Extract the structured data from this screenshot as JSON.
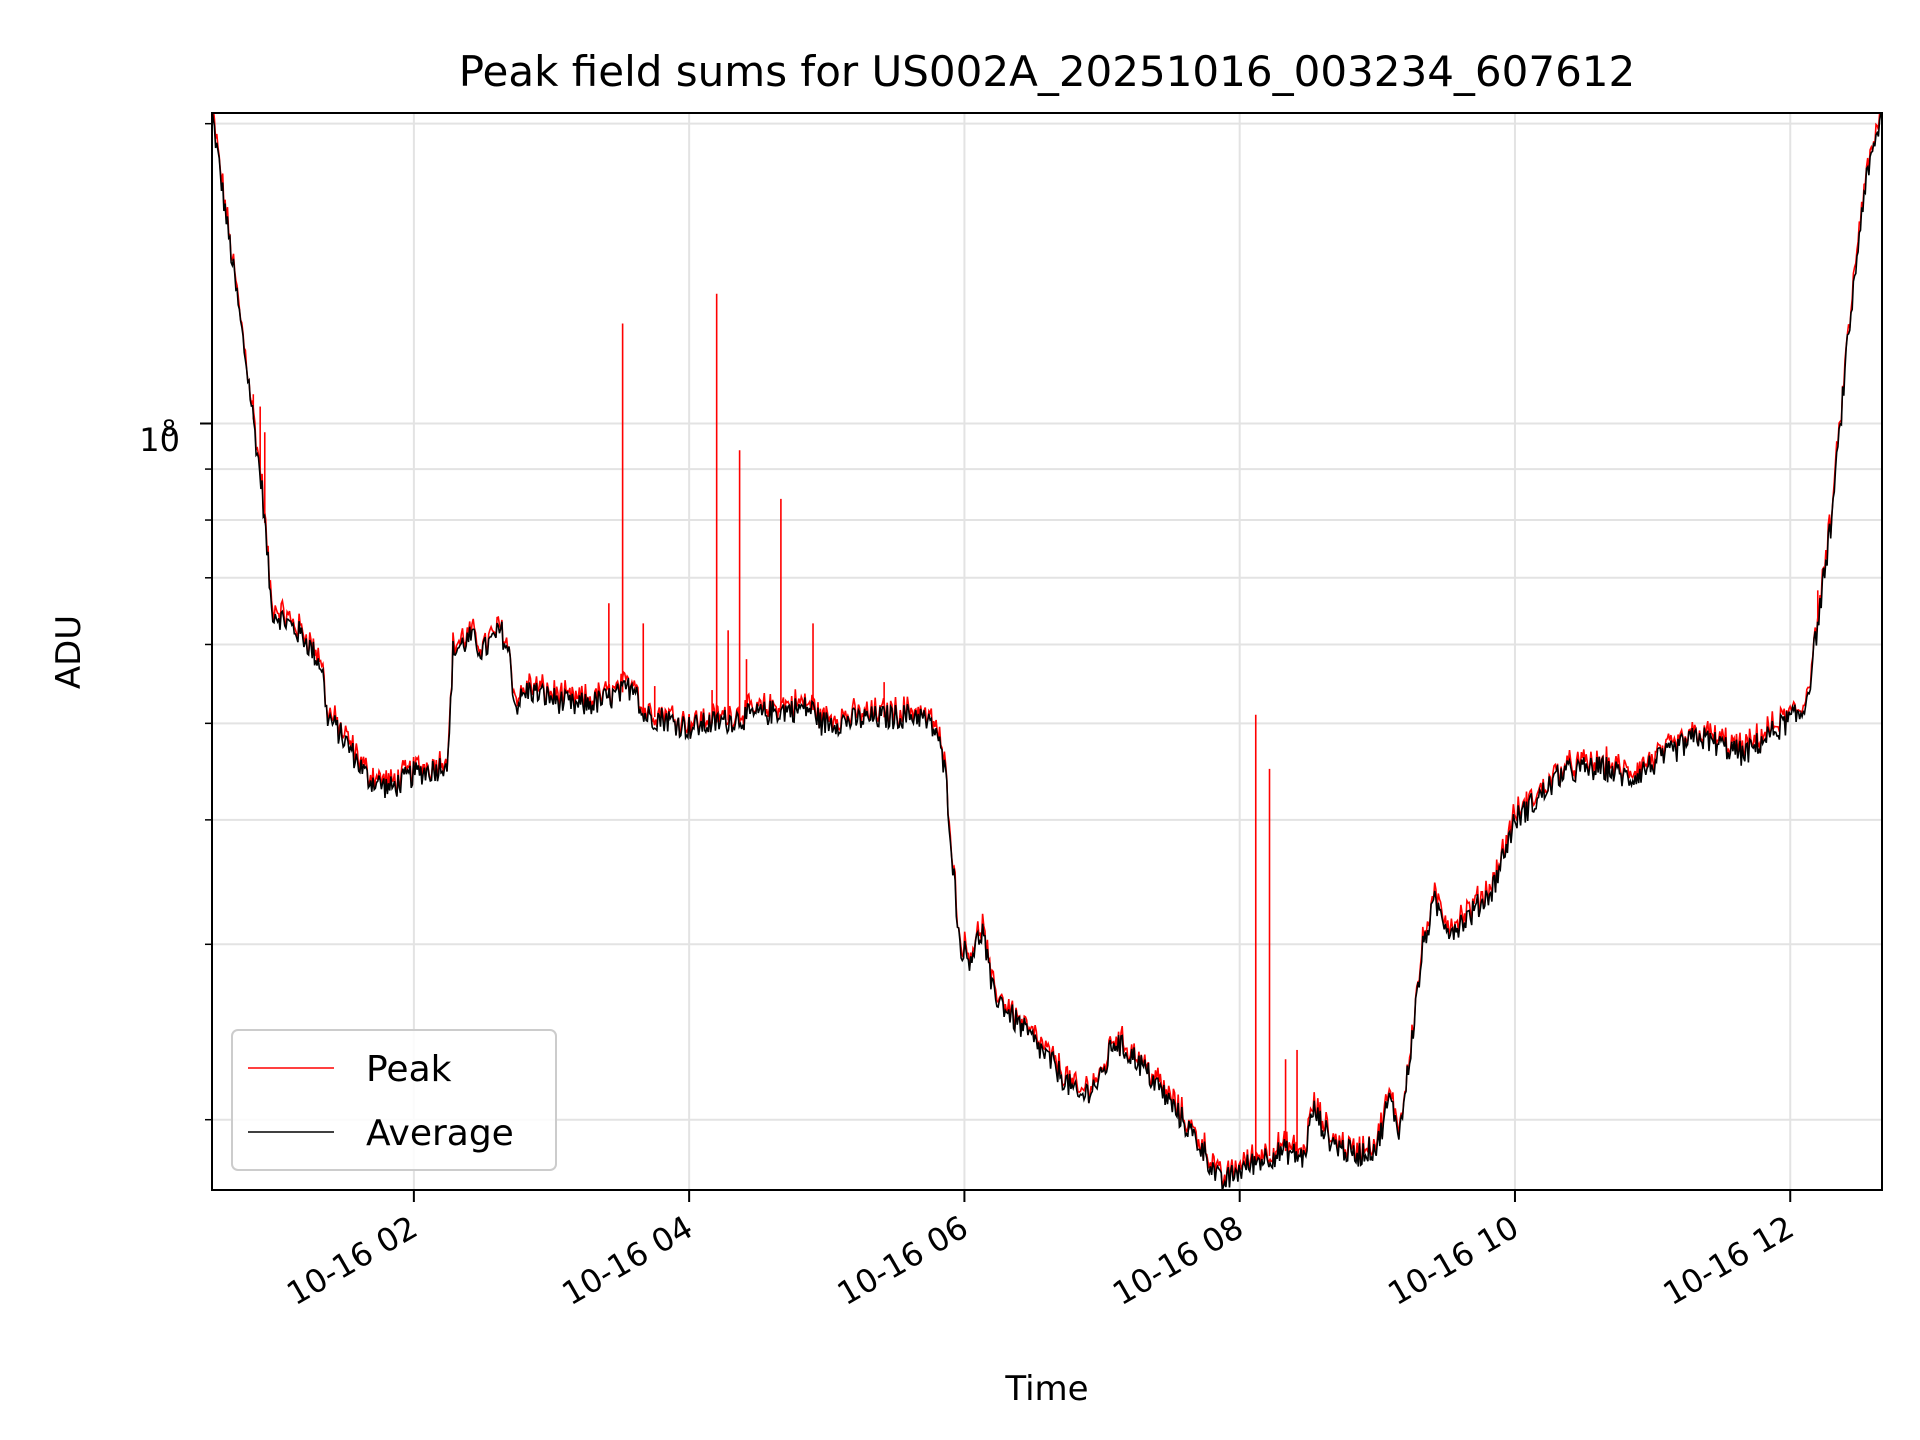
{
  "chart_data": {
    "type": "line",
    "title": "Peak field sums for US002A_20251016_003234_607612",
    "xlabel": "Time",
    "ylabel": "ADU",
    "y_scale": "log",
    "y_major_tick": {
      "value": 100000000,
      "base": "10",
      "exponent": "8"
    },
    "ylim": [
      17000000,
      205000000
    ],
    "xlim": [
      "2025-10-16 00:32",
      "2025-10-16 12:40"
    ],
    "x_ticks": [
      {
        "value": "2025-10-16 02:00",
        "label": "10-16 02"
      },
      {
        "value": "2025-10-16 04:00",
        "label": "10-16 04"
      },
      {
        "value": "2025-10-16 06:00",
        "label": "10-16 06"
      },
      {
        "value": "2025-10-16 08:00",
        "label": "10-16 08"
      },
      {
        "value": "2025-10-16 10:00",
        "label": "10-16 10"
      },
      {
        "value": "2025-10-16 12:00",
        "label": "10-16 12"
      }
    ],
    "grid": true,
    "legend_position": "lower-left",
    "colors": {
      "peak": "#ff0000",
      "average": "#000000"
    },
    "series": [
      {
        "name": "Average",
        "color": "#000000",
        "points": [
          [
            "2025-10-16 00:32",
            205000000
          ],
          [
            "2025-10-16 00:40",
            150000000
          ],
          [
            "2025-10-16 00:48",
            110000000
          ],
          [
            "2025-10-16 00:54",
            85000000
          ],
          [
            "2025-10-16 00:58",
            65000000
          ],
          [
            "2025-10-16 01:05",
            63000000
          ],
          [
            "2025-10-16 01:12",
            61000000
          ],
          [
            "2025-10-16 01:20",
            57000000
          ],
          [
            "2025-10-16 01:22",
            51000000
          ],
          [
            "2025-10-16 01:30",
            48000000
          ],
          [
            "2025-10-16 01:40",
            44000000
          ],
          [
            "2025-10-16 01:50",
            43000000
          ],
          [
            "2025-10-16 02:00",
            44500000
          ],
          [
            "2025-10-16 02:10",
            45000000
          ],
          [
            "2025-10-16 02:15",
            46000000
          ],
          [
            "2025-10-16 02:17",
            59000000
          ],
          [
            "2025-10-16 02:25",
            61000000
          ],
          [
            "2025-10-16 02:30",
            59000000
          ],
          [
            "2025-10-16 02:38",
            62000000
          ],
          [
            "2025-10-16 02:42",
            58000000
          ],
          [
            "2025-10-16 02:44",
            52000000
          ],
          [
            "2025-10-16 02:50",
            54000000
          ],
          [
            "2025-10-16 03:00",
            53000000
          ],
          [
            "2025-10-16 03:10",
            52000000
          ],
          [
            "2025-10-16 03:20",
            52500000
          ],
          [
            "2025-10-16 03:30",
            53500000
          ],
          [
            "2025-10-16 03:37",
            55000000
          ],
          [
            "2025-10-16 03:39",
            51000000
          ],
          [
            "2025-10-16 03:50",
            50500000
          ],
          [
            "2025-10-16 04:00",
            49500000
          ],
          [
            "2025-10-16 04:10",
            50000000
          ],
          [
            "2025-10-16 04:20",
            50500000
          ],
          [
            "2025-10-16 04:30",
            51000000
          ],
          [
            "2025-10-16 04:40",
            51500000
          ],
          [
            "2025-10-16 04:50",
            51800000
          ],
          [
            "2025-10-16 04:55",
            51500000
          ],
          [
            "2025-10-16 04:57",
            50000000
          ],
          [
            "2025-10-16 05:10",
            50300000
          ],
          [
            "2025-10-16 05:20",
            50600000
          ],
          [
            "2025-10-16 05:30",
            50800000
          ],
          [
            "2025-10-16 05:40",
            51000000
          ],
          [
            "2025-10-16 05:48",
            49000000
          ],
          [
            "2025-10-16 05:52",
            44000000
          ],
          [
            "2025-10-16 05:55",
            36000000
          ],
          [
            "2025-10-16 05:58",
            30000000
          ],
          [
            "2025-10-16 06:02",
            29000000
          ],
          [
            "2025-10-16 06:08",
            31000000
          ],
          [
            "2025-10-16 06:12",
            27000000
          ],
          [
            "2025-10-16 06:20",
            25500000
          ],
          [
            "2025-10-16 06:30",
            24000000
          ],
          [
            "2025-10-16 06:40",
            22500000
          ],
          [
            "2025-10-16 06:50",
            21000000
          ],
          [
            "2025-10-16 07:00",
            22000000
          ],
          [
            "2025-10-16 07:05",
            24000000
          ],
          [
            "2025-10-16 07:15",
            23000000
          ],
          [
            "2025-10-16 07:25",
            21500000
          ],
          [
            "2025-10-16 07:35",
            20000000
          ],
          [
            "2025-10-16 07:45",
            18500000
          ],
          [
            "2025-10-16 07:52",
            17200000
          ],
          [
            "2025-10-16 08:00",
            17800000
          ],
          [
            "2025-10-16 08:10",
            18300000
          ],
          [
            "2025-10-16 08:20",
            18600000
          ],
          [
            "2025-10-16 08:28",
            18300000
          ],
          [
            "2025-10-16 08:32",
            20500000
          ],
          [
            "2025-10-16 08:40",
            19000000
          ],
          [
            "2025-10-16 08:50",
            18400000
          ],
          [
            "2025-10-16 09:00",
            18800000
          ],
          [
            "2025-10-16 09:05",
            21000000
          ],
          [
            "2025-10-16 09:10",
            19500000
          ],
          [
            "2025-10-16 09:15",
            24000000
          ],
          [
            "2025-10-16 09:20",
            30000000
          ],
          [
            "2025-10-16 09:25",
            33000000
          ],
          [
            "2025-10-16 09:32",
            31000000
          ],
          [
            "2025-10-16 09:40",
            32000000
          ],
          [
            "2025-10-16 09:50",
            34000000
          ],
          [
            "2025-10-16 10:00",
            40000000
          ],
          [
            "2025-10-16 10:10",
            42000000
          ],
          [
            "2025-10-16 10:20",
            44500000
          ],
          [
            "2025-10-16 10:30",
            45000000
          ],
          [
            "2025-10-16 10:40",
            45000000
          ],
          [
            "2025-10-16 10:50",
            44000000
          ],
          [
            "2025-10-16 11:00",
            45500000
          ],
          [
            "2025-10-16 11:10",
            47000000
          ],
          [
            "2025-10-16 11:20",
            48500000
          ],
          [
            "2025-10-16 11:30",
            47500000
          ],
          [
            "2025-10-16 11:40",
            46500000
          ],
          [
            "2025-10-16 11:50",
            48500000
          ],
          [
            "2025-10-16 12:00",
            50500000
          ],
          [
            "2025-10-16 12:05",
            51000000
          ],
          [
            "2025-10-16 12:08",
            54000000
          ],
          [
            "2025-10-16 12:12",
            63000000
          ],
          [
            "2025-10-16 12:18",
            80000000
          ],
          [
            "2025-10-16 12:25",
            120000000
          ],
          [
            "2025-10-16 12:32",
            170000000
          ],
          [
            "2025-10-16 12:40",
            205000000
          ]
        ]
      },
      {
        "name": "Peak",
        "color": "#ff0000",
        "spikes": [
          [
            "2025-10-16 00:50",
            107000000
          ],
          [
            "2025-10-16 00:53",
            104000000
          ],
          [
            "2025-10-16 00:55",
            98000000
          ],
          [
            "2025-10-16 03:25",
            66000000
          ],
          [
            "2025-10-16 03:31",
            126000000
          ],
          [
            "2025-10-16 03:40",
            63000000
          ],
          [
            "2025-10-16 03:45",
            54500000
          ],
          [
            "2025-10-16 04:10",
            54000000
          ],
          [
            "2025-10-16 04:12",
            135000000
          ],
          [
            "2025-10-16 04:17",
            62000000
          ],
          [
            "2025-10-16 04:22",
            94000000
          ],
          [
            "2025-10-16 04:25",
            58000000
          ],
          [
            "2025-10-16 04:40",
            84000000
          ],
          [
            "2025-10-16 04:54",
            63000000
          ],
          [
            "2025-10-16 05:25",
            55000000
          ],
          [
            "2025-10-16 08:07",
            51000000
          ],
          [
            "2025-10-16 08:13",
            45000000
          ],
          [
            "2025-10-16 08:20",
            23000000
          ],
          [
            "2025-10-16 08:25",
            23500000
          ],
          [
            "2025-10-16 12:12",
            68000000
          ]
        ]
      }
    ]
  }
}
